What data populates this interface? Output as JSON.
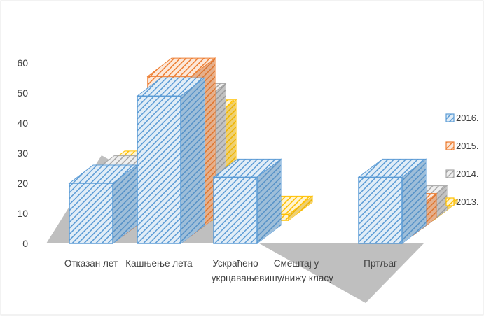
{
  "chart_data": {
    "type": "bar",
    "subtype": "3d-clustered-column",
    "title": "",
    "categories": [
      {
        "lines": [
          "Отказан лет"
        ]
      },
      {
        "lines": [
          "Кашњење лета"
        ]
      },
      {
        "lines": [
          "Ускраћено",
          "укрцавање"
        ]
      },
      {
        "lines": [
          "Смештај у",
          "вишу/нижу класу"
        ]
      },
      {
        "lines": [
          "Пртљаг"
        ]
      }
    ],
    "series": [
      {
        "name": "2016.",
        "color": "#5b9bd5",
        "values": [
          20,
          49,
          22,
          0,
          22
        ]
      },
      {
        "name": "2015.",
        "color": "#ed7d31",
        "values": [
          13,
          53,
          0,
          0,
          8
        ]
      },
      {
        "name": "2014.",
        "color": "#a5a5a5",
        "values": [
          18,
          42,
          0,
          0,
          8
        ]
      },
      {
        "name": "2013.",
        "color": "#ffc000",
        "values": [
          17,
          34,
          2,
          0,
          1
        ]
      }
    ],
    "y_ticks": [
      "0",
      "10",
      "20",
      "30",
      "40",
      "50",
      "60"
    ],
    "ylim": [
      0,
      60
    ],
    "legend_position": "right",
    "floor_color": "#bfbfbf"
  }
}
